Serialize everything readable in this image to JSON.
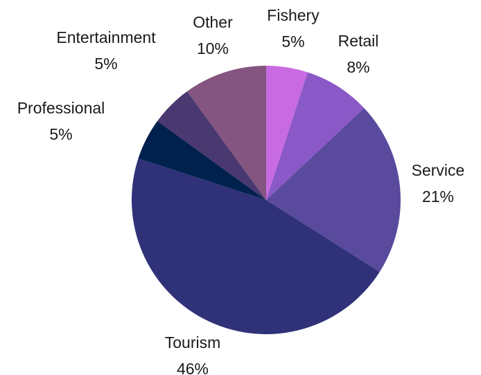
{
  "chart_data": {
    "type": "pie",
    "title": "",
    "categories": [
      "Fishery",
      "Retail",
      "Service",
      "Tourism",
      "Professional",
      "Entertainment",
      "Other"
    ],
    "values": [
      5,
      8,
      21,
      46,
      5,
      5,
      10
    ],
    "value_labels": [
      "5%",
      "8%",
      "21%",
      "46%",
      "5%",
      "5%",
      "10%"
    ],
    "colors": [
      "#c86be3",
      "#8b59c7",
      "#5a4a9e",
      "#2f3278",
      "#00214d",
      "#4a3870",
      "#845580"
    ],
    "start_angle_deg": 0,
    "direction": "clockwise",
    "legend": "none"
  }
}
